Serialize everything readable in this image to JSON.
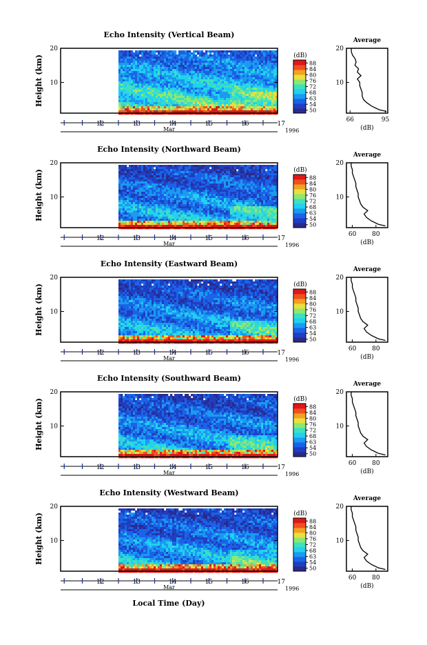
{
  "figure": {
    "xlabel": "Local Time (Day)",
    "month_label": "Mar",
    "year_label": "1996",
    "ylabel": "Height (km)",
    "colorbar_unit": "(dB)",
    "colorbar_ticks": [
      "50",
      "54",
      "63",
      "68",
      "72",
      "76",
      "80",
      "84",
      "88"
    ],
    "colorbar_colors": [
      "#2a2a8c",
      "#1f3fc0",
      "#1a63e8",
      "#1a9af0",
      "#22d0f0",
      "#3ee0c0",
      "#8ee870",
      "#e8e040",
      "#f4a020",
      "#f05020",
      "#e01818"
    ],
    "avg_title": "Average",
    "avg_xlabel": "(dB)"
  },
  "chart_data": [
    {
      "type": "heatmap",
      "title": "Echo Intensity (Vertical Beam)",
      "ylabel": "Height (km)",
      "xlabel": "Local Time (Day)",
      "x_ticks": [
        "12",
        "13",
        "14",
        "15",
        "16",
        "17"
      ],
      "y_ticks": [
        "10",
        "20"
      ],
      "xlim_days": [
        11.4,
        17.4
      ],
      "data_start_day": 13.0,
      "ylim_km": [
        1,
        20
      ],
      "colorbar_range_db": [
        50,
        88
      ],
      "colormap": "jet",
      "data_description_values": "echo intensity strongest near surface",
      "average_profile": {
        "title": "Average",
        "xlabel": "(dB)",
        "x_ticks": [
          "66",
          "95"
        ],
        "y_ticks": [
          "10",
          "20"
        ],
        "xlim": [
          63,
          97
        ],
        "height_km": [
          1.5,
          2,
          3,
          4,
          5,
          6,
          7,
          8,
          9,
          10,
          11,
          12,
          13,
          14,
          15,
          16,
          17,
          18,
          19,
          20
        ],
        "db": [
          96,
          90,
          84,
          80,
          77,
          76,
          76,
          75,
          74,
          74,
          72,
          75,
          72,
          73,
          70,
          71,
          70,
          68,
          67,
          67
        ]
      }
    },
    {
      "type": "heatmap",
      "title": "Echo Intensity (Northward Beam)",
      "ylabel": "Height (km)",
      "x_ticks": [
        "12",
        "13",
        "14",
        "15",
        "16",
        "17"
      ],
      "y_ticks": [
        "10",
        "20"
      ],
      "xlim_days": [
        11.4,
        17.4
      ],
      "data_start_day": 13.0,
      "ylim_km": [
        1,
        20
      ],
      "colorbar_range_db": [
        50,
        88
      ],
      "colormap": "jet",
      "average_profile": {
        "title": "Average",
        "xlabel": "(dB)",
        "x_ticks": [
          "60",
          "80"
        ],
        "y_ticks": [
          "10",
          "20"
        ],
        "xlim": [
          55,
          90
        ],
        "height_km": [
          1.5,
          2,
          3,
          4,
          5,
          6,
          7,
          8,
          9,
          10,
          11,
          12,
          13,
          14,
          15,
          16,
          17,
          18,
          19,
          20
        ],
        "db": [
          88,
          82,
          76,
          72,
          70,
          73,
          69,
          67,
          66,
          65,
          65,
          64,
          63,
          63,
          62,
          61,
          60,
          60,
          59,
          59
        ]
      }
    },
    {
      "type": "heatmap",
      "title": "Echo Intensity (Eastward Beam)",
      "ylabel": "Height (km)",
      "x_ticks": [
        "12",
        "13",
        "14",
        "15",
        "16",
        "17"
      ],
      "y_ticks": [
        "10",
        "20"
      ],
      "xlim_days": [
        11.4,
        17.4
      ],
      "data_start_day": 13.0,
      "ylim_km": [
        1,
        20
      ],
      "colorbar_range_db": [
        50,
        88
      ],
      "colormap": "jet",
      "average_profile": {
        "title": "Average",
        "xlabel": "(dB)",
        "x_ticks": [
          "60",
          "80"
        ],
        "y_ticks": [
          "10",
          "20"
        ],
        "xlim": [
          55,
          90
        ],
        "height_km": [
          1.5,
          2,
          3,
          4,
          5,
          6,
          7,
          8,
          9,
          10,
          11,
          12,
          13,
          14,
          15,
          16,
          17,
          18,
          19,
          20
        ],
        "db": [
          88,
          82,
          76,
          72,
          70,
          73,
          69,
          67,
          66,
          65,
          65,
          64,
          63,
          63,
          62,
          61,
          60,
          60,
          59,
          59
        ]
      }
    },
    {
      "type": "heatmap",
      "title": "Echo Intensity (Southward Beam)",
      "ylabel": "Height (km)",
      "x_ticks": [
        "12",
        "13",
        "14",
        "15",
        "16",
        "17"
      ],
      "y_ticks": [
        "10",
        "20"
      ],
      "xlim_days": [
        11.4,
        17.4
      ],
      "data_start_day": 13.0,
      "ylim_km": [
        1,
        20
      ],
      "colorbar_range_db": [
        50,
        88
      ],
      "colormap": "jet",
      "average_profile": {
        "title": "Average",
        "xlabel": "(dB)",
        "x_ticks": [
          "60",
          "80"
        ],
        "y_ticks": [
          "10",
          "20"
        ],
        "xlim": [
          55,
          90
        ],
        "height_km": [
          1.5,
          2,
          3,
          4,
          5,
          6,
          7,
          8,
          9,
          10,
          11,
          12,
          13,
          14,
          15,
          16,
          17,
          18,
          19,
          20
        ],
        "db": [
          88,
          82,
          76,
          72,
          70,
          73,
          69,
          67,
          66,
          65,
          65,
          64,
          63,
          63,
          62,
          61,
          60,
          60,
          59,
          59
        ]
      }
    },
    {
      "type": "heatmap",
      "title": "Echo Intensity (Westward Beam)",
      "ylabel": "Height (km)",
      "xlabel": "Local Time (Day)",
      "x_ticks": [
        "12",
        "13",
        "14",
        "15",
        "16",
        "17"
      ],
      "y_ticks": [
        "10",
        "20"
      ],
      "xlim_days": [
        11.4,
        17.4
      ],
      "data_start_day": 13.0,
      "ylim_km": [
        1,
        20
      ],
      "colorbar_range_db": [
        50,
        88
      ],
      "colormap": "jet",
      "average_profile": {
        "title": "Average",
        "xlabel": "(dB)",
        "x_ticks": [
          "60",
          "80"
        ],
        "y_ticks": [
          "10",
          "20"
        ],
        "xlim": [
          55,
          90
        ],
        "height_km": [
          1.5,
          2,
          3,
          4,
          5,
          6,
          7,
          8,
          9,
          10,
          11,
          12,
          13,
          14,
          15,
          16,
          17,
          18,
          19,
          20
        ],
        "db": [
          88,
          82,
          76,
          72,
          70,
          73,
          69,
          67,
          66,
          65,
          65,
          64,
          63,
          63,
          62,
          61,
          60,
          60,
          59,
          59
        ]
      }
    }
  ]
}
